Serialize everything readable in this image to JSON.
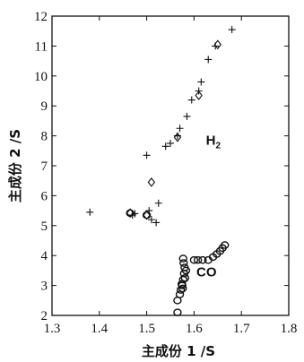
{
  "chart_data": {
    "type": "scatter",
    "title": "",
    "xlabel": "主成份 1 /S",
    "ylabel": "主成份 2 /S",
    "xlim": [
      1.3,
      1.8
    ],
    "ylim": [
      2,
      12
    ],
    "x_ticks": [
      1.3,
      1.4,
      1.5,
      1.6,
      1.7,
      1.8
    ],
    "y_ticks": [
      2,
      3,
      4,
      5,
      6,
      7,
      8,
      9,
      10,
      11,
      12
    ],
    "x_tick_labels": [
      "1.3",
      "1.4",
      "1.5",
      "1.6",
      "1.7",
      "1.8"
    ],
    "y_tick_labels": [
      "2",
      "3",
      "4",
      "5",
      "6",
      "7",
      "8",
      "9",
      "10",
      "11",
      "12"
    ],
    "grid": false,
    "legend": "none",
    "annotations": [
      {
        "text": "H",
        "sub": "2",
        "x": 1.625,
        "y": 7.7
      },
      {
        "text": "CO",
        "x": 1.605,
        "y": 3.3
      }
    ],
    "series": [
      {
        "marker": "plus",
        "points": [
          [
            1.38,
            5.45
          ],
          [
            1.47,
            5.35
          ],
          [
            1.475,
            5.4
          ],
          [
            1.5,
            7.35
          ],
          [
            1.505,
            5.5
          ],
          [
            1.51,
            5.2
          ],
          [
            1.52,
            5.1
          ],
          [
            1.525,
            5.75
          ],
          [
            1.54,
            7.65
          ],
          [
            1.55,
            7.75
          ],
          [
            1.565,
            8.0
          ],
          [
            1.57,
            8.25
          ],
          [
            1.585,
            8.65
          ],
          [
            1.595,
            9.2
          ],
          [
            1.61,
            9.5
          ],
          [
            1.615,
            9.8
          ],
          [
            1.63,
            10.55
          ],
          [
            1.645,
            11.0
          ],
          [
            1.68,
            11.55
          ]
        ]
      },
      {
        "marker": "diamond",
        "points": [
          [
            1.465,
            5.42
          ],
          [
            1.5,
            5.35
          ],
          [
            1.51,
            6.45
          ],
          [
            1.565,
            7.95
          ],
          [
            1.61,
            9.35
          ],
          [
            1.65,
            11.05
          ]
        ]
      },
      {
        "marker": "circle",
        "points": [
          [
            1.465,
            5.42
          ],
          [
            1.5,
            5.35
          ],
          [
            1.565,
            2.1
          ],
          [
            1.565,
            2.5
          ],
          [
            1.57,
            2.7
          ],
          [
            1.572,
            2.85
          ],
          [
            1.575,
            3.0
          ],
          [
            1.577,
            3.2
          ],
          [
            1.579,
            3.4
          ],
          [
            1.58,
            3.6
          ],
          [
            1.578,
            3.75
          ],
          [
            1.577,
            3.9
          ],
          [
            1.574,
            3.05
          ],
          [
            1.576,
            2.9
          ],
          [
            1.581,
            3.25
          ],
          [
            1.583,
            3.5
          ],
          [
            1.6,
            3.85
          ],
          [
            1.608,
            3.85
          ],
          [
            1.618,
            3.85
          ],
          [
            1.63,
            3.85
          ],
          [
            1.64,
            3.95
          ],
          [
            1.648,
            4.05
          ],
          [
            1.655,
            4.15
          ],
          [
            1.66,
            4.25
          ],
          [
            1.665,
            4.35
          ]
        ]
      }
    ]
  }
}
